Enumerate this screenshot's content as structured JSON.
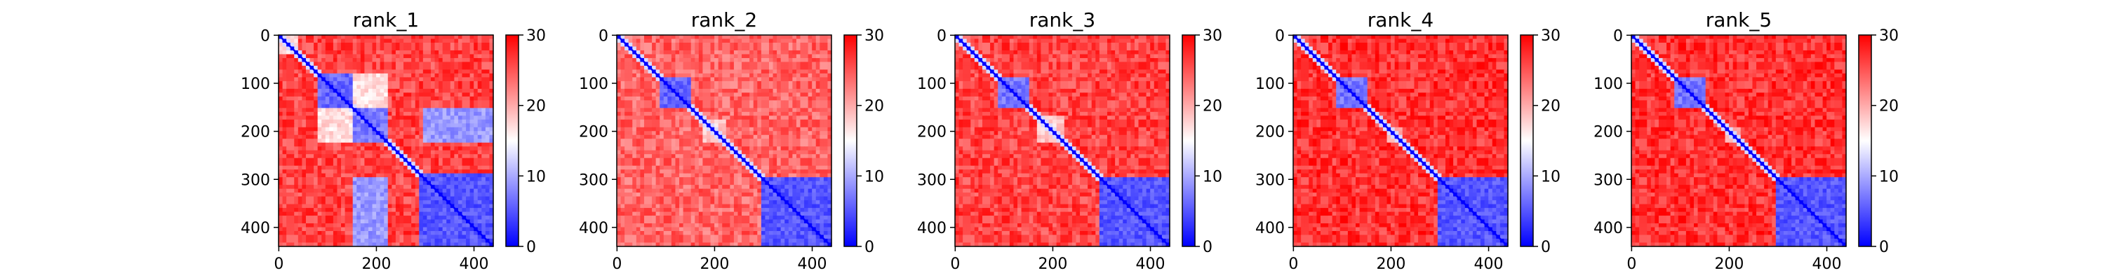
{
  "chart_data": [
    {
      "type": "heatmap",
      "title": "rank_1",
      "x_ticks": [
        0,
        200,
        400
      ],
      "y_ticks": [
        0,
        100,
        200,
        300,
        400
      ],
      "matrix_size": 440,
      "colorbar": {
        "min": 0,
        "max": 30,
        "ticks": [
          0,
          10,
          20,
          30
        ],
        "colormap": "bwr"
      },
      "blocks": [
        {
          "start": 0,
          "end": 40,
          "value": 17
        },
        {
          "start": 80,
          "end": 150,
          "value": 6
        },
        {
          "start": 150,
          "end": 225,
          "value": 7
        },
        {
          "start": 290,
          "end": 440,
          "value": 5
        }
      ],
      "off_diagonal_blocks": [
        {
          "rows": [
            150,
            225
          ],
          "cols": [
            295,
            440
          ],
          "value": 9
        },
        {
          "rows": [
            295,
            440
          ],
          "cols": [
            150,
            225
          ],
          "value": 9
        },
        {
          "rows": [
            80,
            150
          ],
          "cols": [
            150,
            225
          ],
          "value": 17
        },
        {
          "rows": [
            150,
            225
          ],
          "cols": [
            80,
            150
          ],
          "value": 17
        }
      ],
      "background_value": 26
    },
    {
      "type": "heatmap",
      "title": "rank_2",
      "x_ticks": [
        0,
        200,
        400
      ],
      "y_ticks": [
        0,
        100,
        200,
        300,
        400
      ],
      "matrix_size": 440,
      "colorbar": {
        "min": 0,
        "max": 30,
        "ticks": [
          0,
          10,
          20,
          30
        ],
        "colormap": "bwr"
      },
      "blocks": [
        {
          "start": 85,
          "end": 150,
          "value": 6
        },
        {
          "start": 180,
          "end": 225,
          "value": 18
        },
        {
          "start": 295,
          "end": 440,
          "value": 5
        }
      ],
      "off_diagonal_blocks": [],
      "background_value": 24
    },
    {
      "type": "heatmap",
      "title": "rank_3",
      "x_ticks": [
        0,
        200,
        400
      ],
      "y_ticks": [
        0,
        100,
        200,
        300,
        400
      ],
      "matrix_size": 440,
      "colorbar": {
        "min": 0,
        "max": 30,
        "ticks": [
          0,
          10,
          20,
          30
        ],
        "colormap": "bwr"
      },
      "blocks": [
        {
          "start": 85,
          "end": 150,
          "value": 7
        },
        {
          "start": 170,
          "end": 225,
          "value": 18
        },
        {
          "start": 295,
          "end": 440,
          "value": 5
        }
      ],
      "off_diagonal_blocks": [],
      "background_value": 26
    },
    {
      "type": "heatmap",
      "title": "rank_4",
      "x_ticks": [
        0,
        200,
        400
      ],
      "y_ticks": [
        0,
        100,
        200,
        300,
        400
      ],
      "matrix_size": 440,
      "colorbar": {
        "min": 0,
        "max": 30,
        "ticks": [
          0,
          10,
          20,
          30
        ],
        "colormap": "bwr"
      },
      "blocks": [
        {
          "start": 85,
          "end": 150,
          "value": 7
        },
        {
          "start": 190,
          "end": 225,
          "value": 19
        },
        {
          "start": 295,
          "end": 440,
          "value": 5
        }
      ],
      "off_diagonal_blocks": [],
      "background_value": 27
    },
    {
      "type": "heatmap",
      "title": "rank_5",
      "x_ticks": [
        0,
        200,
        400
      ],
      "y_ticks": [
        0,
        100,
        200,
        300,
        400
      ],
      "matrix_size": 440,
      "colorbar": {
        "min": 0,
        "max": 30,
        "ticks": [
          0,
          10,
          20,
          30
        ],
        "colormap": "bwr"
      },
      "blocks": [
        {
          "start": 85,
          "end": 150,
          "value": 7
        },
        {
          "start": 190,
          "end": 225,
          "value": 19
        },
        {
          "start": 295,
          "end": 440,
          "value": 5
        }
      ],
      "off_diagonal_blocks": [],
      "background_value": 27
    }
  ]
}
